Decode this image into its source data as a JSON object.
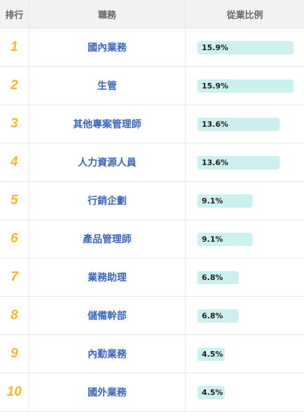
{
  "header": {
    "rank": "排行",
    "job": "職務",
    "share": "從業比例"
  },
  "max_share": 15.9,
  "rows": [
    {
      "rank": "1",
      "job": "國內業務",
      "share": 15.9,
      "share_label": "15.9%"
    },
    {
      "rank": "2",
      "job": "生管",
      "share": 15.9,
      "share_label": "15.9%"
    },
    {
      "rank": "3",
      "job": "其他專案管理師",
      "share": 13.6,
      "share_label": "13.6%"
    },
    {
      "rank": "4",
      "job": "人力資源人員",
      "share": 13.6,
      "share_label": "13.6%"
    },
    {
      "rank": "5",
      "job": "行銷企劃",
      "share": 9.1,
      "share_label": "9.1%"
    },
    {
      "rank": "6",
      "job": "產品管理師",
      "share": 9.1,
      "share_label": "9.1%"
    },
    {
      "rank": "7",
      "job": "業務助理",
      "share": 6.8,
      "share_label": "6.8%"
    },
    {
      "rank": "8",
      "job": "儲備幹部",
      "share": 6.8,
      "share_label": "6.8%"
    },
    {
      "rank": "9",
      "job": "內勤業務",
      "share": 4.5,
      "share_label": "4.5%"
    },
    {
      "rank": "10",
      "job": "國外業務",
      "share": 4.5,
      "share_label": "4.5%"
    }
  ]
}
